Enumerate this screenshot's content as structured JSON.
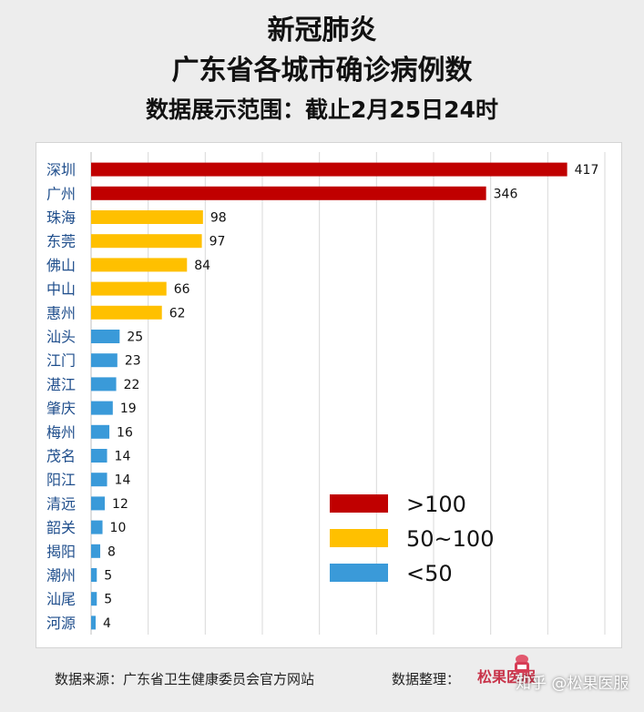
{
  "header": {
    "title_line1": "新冠肺炎",
    "title_line2": "广东省各城市确诊病例数",
    "subtitle": "数据展示范围：截止2月25日24时"
  },
  "chart_data": {
    "type": "bar",
    "orientation": "horizontal",
    "categories": [
      "深圳",
      "广州",
      "珠海",
      "东莞",
      "佛山",
      "中山",
      "惠州",
      "汕头",
      "江门",
      "湛江",
      "肇庆",
      "梅州",
      "茂名",
      "阳江",
      "清远",
      "韶关",
      "揭阳",
      "潮州",
      "汕尾",
      "河源"
    ],
    "values": [
      417,
      346,
      98,
      97,
      84,
      66,
      62,
      25,
      23,
      22,
      19,
      16,
      14,
      14,
      12,
      10,
      8,
      5,
      5,
      4
    ],
    "xlim": [
      0,
      450
    ],
    "grid": true,
    "legend_position": "bottom-right",
    "legend": [
      {
        "label": ">100",
        "color": "#c00000",
        "min": 100
      },
      {
        "label": "50~100",
        "color": "#ffc000",
        "min": 50
      },
      {
        "label": "<50",
        "color": "#3a9ad9",
        "min": 0
      }
    ]
  },
  "footer": {
    "source": "数据来源：广东省卫生健康委员会官方网站",
    "organizer": "数据整理：",
    "brand": "松果医服",
    "watermark": "知乎 @松果医服"
  },
  "colors": {
    "high": "#c00000",
    "mid": "#ffc000",
    "low": "#3a9ad9",
    "grid": "#d9d9d9"
  }
}
